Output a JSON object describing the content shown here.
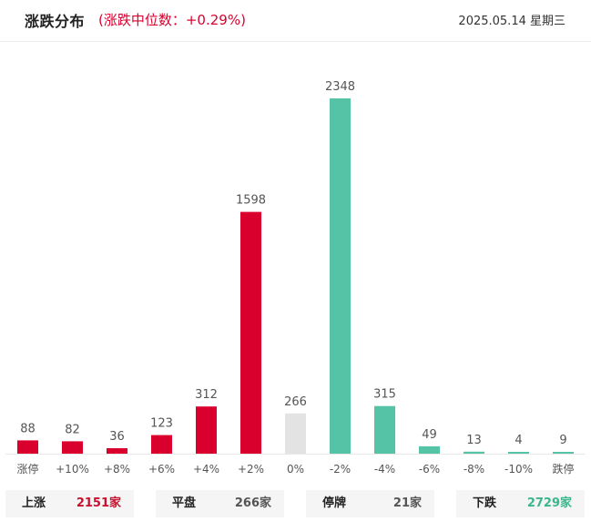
{
  "header": {
    "title": "涨跌分布",
    "median_label": "(涨跌中位数：+0.29%)",
    "date": "2025.05.14 星期三"
  },
  "colors": {
    "up": "#d9002e",
    "flat": "#e3e3e3",
    "down": "#55c3a6"
  },
  "chart_data": {
    "type": "bar",
    "categories": [
      "涨停",
      "+10%",
      "+8%",
      "+6%",
      "+4%",
      "+2%",
      "0%",
      "-2%",
      "-4%",
      "-6%",
      "-8%",
      "-10%",
      "跌停"
    ],
    "values": [
      88,
      82,
      36,
      123,
      312,
      1598,
      266,
      2348,
      315,
      49,
      13,
      4,
      9
    ],
    "bar_colors": [
      "up",
      "up",
      "up",
      "up",
      "up",
      "up",
      "flat",
      "down",
      "down",
      "down",
      "down",
      "down",
      "down"
    ],
    "ylim": [
      0,
      2348
    ],
    "grid": false,
    "legend": "none"
  },
  "summary": {
    "up": {
      "label": "上涨",
      "value": "2151家"
    },
    "flat": {
      "label": "平盘",
      "value": "266家"
    },
    "halt": {
      "label": "停牌",
      "value": "21家"
    },
    "down": {
      "label": "下跌",
      "value": "2729家"
    }
  }
}
